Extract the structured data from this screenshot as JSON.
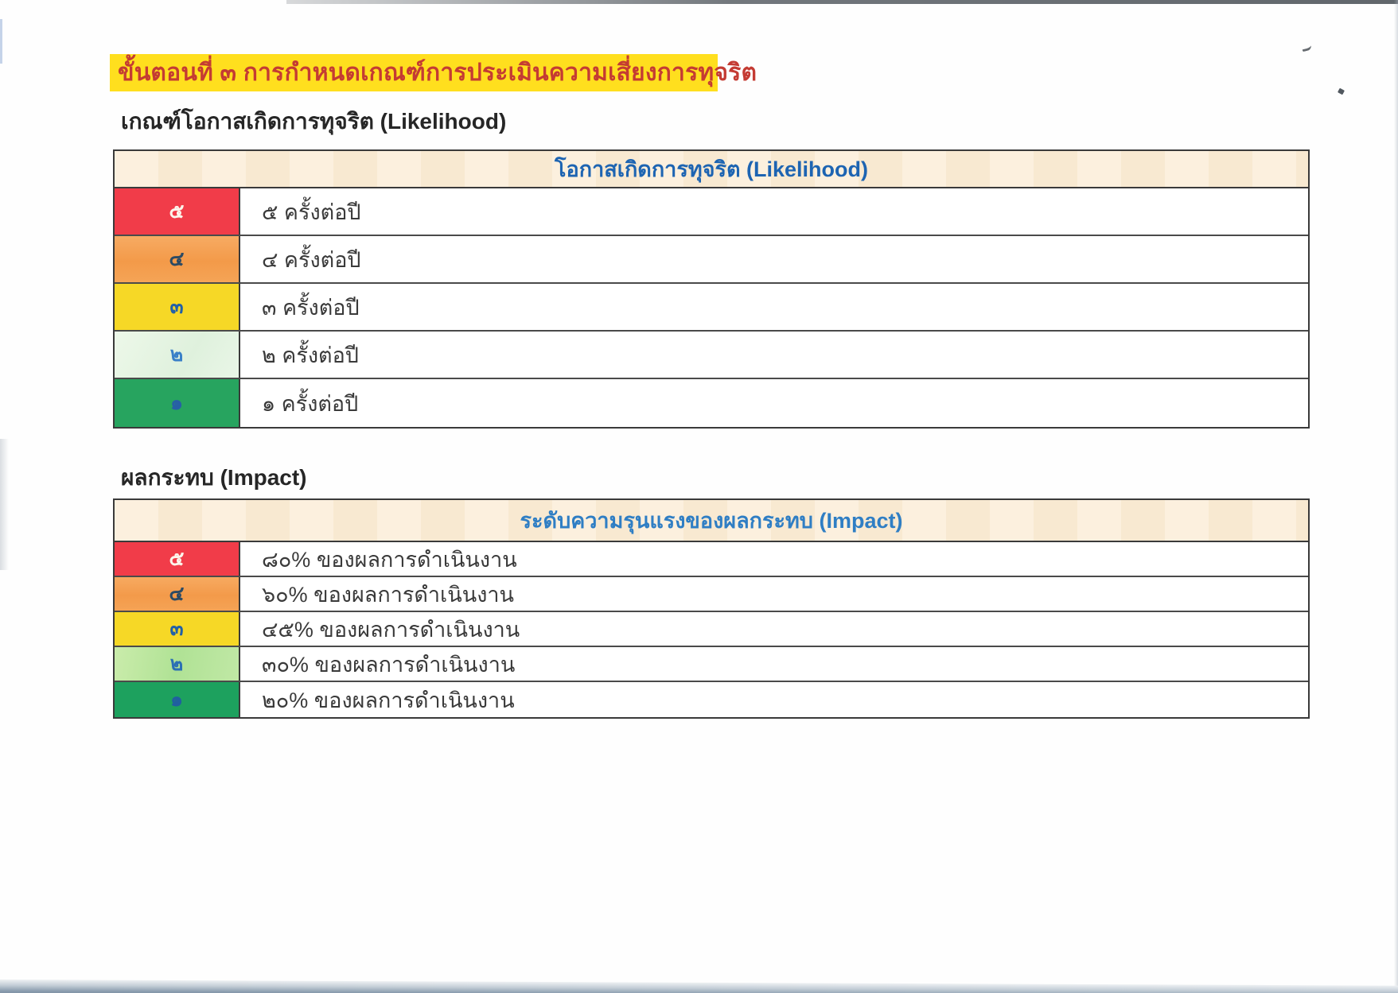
{
  "document": {
    "step_title": "ขั้นตอนที่ ๓ การกำหนดเกณฑ์การประเมินความเสี่ยงการทุจริต",
    "title_text_color": "#c43b33",
    "title_highlight_color": "#ffdf1e",
    "likelihood": {
      "subtitle": "เกณฑ์โอกาสเกิดการทุจริต (Likelihood)",
      "table_header": "โอกาสเกิดการทุจริต (Likelihood)",
      "header_bg": "repeating-linear-gradient(90deg, #fcf0de 0px, #fcf0de 55px, #f8e9d1 55px, #f8e9d1 110px)",
      "header_text_color": "#1d64b2",
      "rows": [
        {
          "score": "๕",
          "label": "๕ ครั้งต่อปี",
          "bg": "#f13c49",
          "score_color": "#fcf5ec"
        },
        {
          "score": "๔",
          "label": "๔ ครั้งต่อปี",
          "bg": "linear-gradient(180deg, #f7ab63 0%, #f39a49 55%, #f5a456 100%)",
          "score_color": "#2c4a63"
        },
        {
          "score": "๓",
          "label": "๓ ครั้งต่อปี",
          "bg": "#f6d826",
          "score_color": "#2160a8"
        },
        {
          "score": "๒",
          "label": "๒ ครั้งต่อปี",
          "bg": "linear-gradient(120deg, #edf8e9 0%, #dff1dd 60%, #e9f6e7 100%)",
          "score_color": "#3a80c8"
        },
        {
          "score": "๑",
          "label": "๑ ครั้งต่อปี",
          "bg": "#27a45f",
          "score_color": "#275fa6"
        }
      ]
    },
    "impact": {
      "subtitle": "ผลกระทบ (Impact)",
      "table_header": "ระดับความรุนแรงของผลกระทบ (Impact)",
      "header_bg": "repeating-linear-gradient(90deg, #fcf0de 0px, #fcf0de 55px, #f8e9d1 55px, #f8e9d1 110px)",
      "header_text_color": "#2f7ec4",
      "rows": [
        {
          "score": "๕",
          "label": "๘๐% ของผลการดำเนินงาน",
          "bg": "#f13c49",
          "score_color": "#fcf5ec"
        },
        {
          "score": "๔",
          "label": "๖๐% ของผลการดำเนินงาน",
          "bg": "linear-gradient(180deg, #f7aa61 0%, #f39a4a 55%, #f5a355 100%)",
          "score_color": "#2c4a63"
        },
        {
          "score": "๓",
          "label": "๔๕% ของผลการดำเนินงาน",
          "bg": "#f6d826",
          "score_color": "#2160a8"
        },
        {
          "score": "๒",
          "label": "๓๐% ของผลการดำเนินงาน",
          "bg": "linear-gradient(100deg, #caecab 0%, #b0e295 50%, #c0e8a5 100%)",
          "score_color": "#2b6fb4"
        },
        {
          "score": "๑",
          "label": "๒๐% ของผลการดำเนินงาน",
          "bg": "#1da15e",
          "score_color": "#205fa0"
        }
      ]
    }
  }
}
